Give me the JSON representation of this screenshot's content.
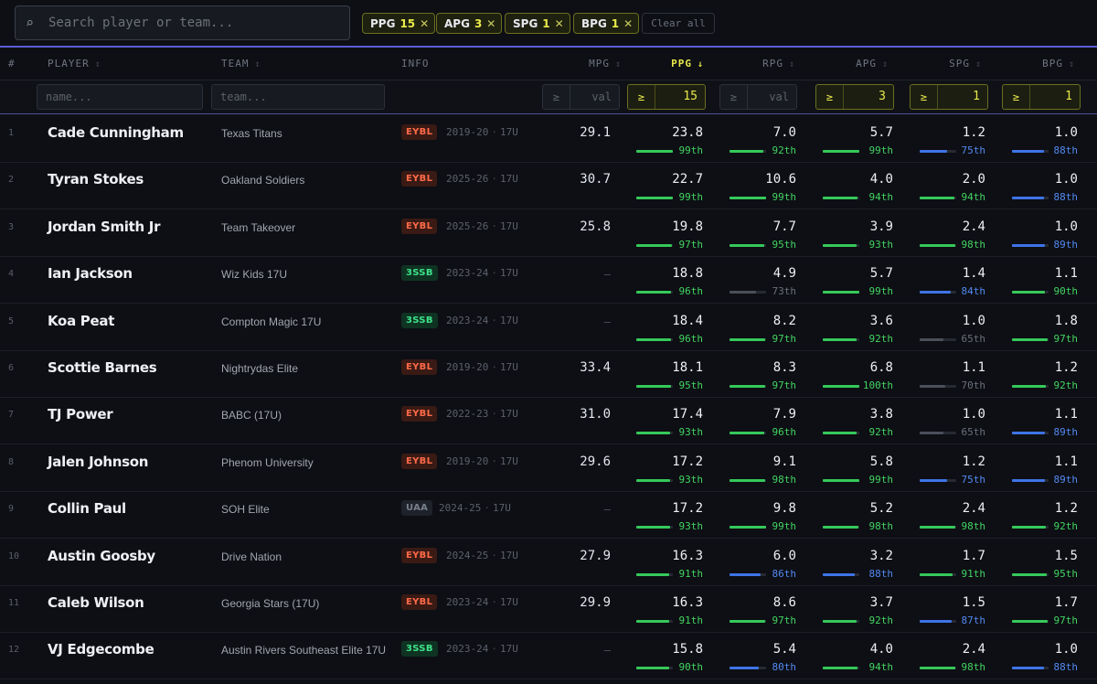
{
  "search": {
    "placeholder": "Search player or team..."
  },
  "chips": [
    {
      "stat": "PPG",
      "value": "15"
    },
    {
      "stat": "APG",
      "value": "3"
    },
    {
      "stat": "SPG",
      "value": "1"
    },
    {
      "stat": "BPG",
      "value": "1"
    }
  ],
  "clear_label": "Clear all",
  "headers": {
    "rank": "#",
    "player": "PLAYER",
    "team": "TEAM",
    "info": "INFO",
    "mpg": "MPG",
    "ppg": "PPG",
    "rpg": "RPG",
    "apg": "APG",
    "spg": "SPG",
    "bpg": "BPG",
    "sort_icon": "↕",
    "sorted_icon": "↓"
  },
  "filters": {
    "name_placeholder": "name...",
    "team_placeholder": "team...",
    "op": "≥",
    "mpg": "val",
    "ppg": "15",
    "rpg": "val",
    "apg": "3",
    "spg": "1",
    "bpg": "1"
  },
  "colors": {
    "accent": "#5c5ed8",
    "highlight": "#e8ea4a",
    "green": "#43d462",
    "blue": "#5489f2",
    "gray": "#6b707b"
  },
  "rows": [
    {
      "rank": "1",
      "name": "Cade Cunningham",
      "team": "Texas Titans",
      "league": "EYBL",
      "season": "2019-20",
      "age": "17U",
      "mpg": "29.1",
      "stats": [
        {
          "v": "23.8",
          "p": "99th",
          "c": "g",
          "f": 0.99
        },
        {
          "v": "7.0",
          "p": "92th",
          "c": "g",
          "f": 0.92
        },
        {
          "v": "5.7",
          "p": "99th",
          "c": "g",
          "f": 0.99
        },
        {
          "v": "1.2",
          "p": "75th",
          "c": "b",
          "f": 0.75
        },
        {
          "v": "1.0",
          "p": "88th",
          "c": "b",
          "f": 0.88
        }
      ]
    },
    {
      "rank": "2",
      "name": "Tyran Stokes",
      "team": "Oakland Soldiers",
      "league": "EYBL",
      "season": "2025-26",
      "age": "17U",
      "mpg": "30.7",
      "stats": [
        {
          "v": "22.7",
          "p": "99th",
          "c": "g",
          "f": 0.99
        },
        {
          "v": "10.6",
          "p": "99th",
          "c": "g",
          "f": 0.99
        },
        {
          "v": "4.0",
          "p": "94th",
          "c": "g",
          "f": 0.94
        },
        {
          "v": "2.0",
          "p": "94th",
          "c": "g",
          "f": 0.94
        },
        {
          "v": "1.0",
          "p": "88th",
          "c": "b",
          "f": 0.88
        }
      ]
    },
    {
      "rank": "3",
      "name": "Jordan Smith Jr",
      "team": "Team Takeover",
      "league": "EYBL",
      "season": "2025-26",
      "age": "17U",
      "mpg": "25.8",
      "stats": [
        {
          "v": "19.8",
          "p": "97th",
          "c": "g",
          "f": 0.97
        },
        {
          "v": "7.7",
          "p": "95th",
          "c": "g",
          "f": 0.95
        },
        {
          "v": "3.9",
          "p": "93th",
          "c": "g",
          "f": 0.93
        },
        {
          "v": "2.4",
          "p": "98th",
          "c": "g",
          "f": 0.98
        },
        {
          "v": "1.0",
          "p": "89th",
          "c": "b",
          "f": 0.89
        }
      ]
    },
    {
      "rank": "4",
      "name": "Ian Jackson",
      "team": "Wiz Kids 17U",
      "league": "3SSB",
      "season": "2023-24",
      "age": "17U",
      "mpg": "—",
      "stats": [
        {
          "v": "18.8",
          "p": "96th",
          "c": "g",
          "f": 0.96
        },
        {
          "v": "4.9",
          "p": "73th",
          "c": "y",
          "f": 0.73
        },
        {
          "v": "5.7",
          "p": "99th",
          "c": "g",
          "f": 0.99
        },
        {
          "v": "1.4",
          "p": "84th",
          "c": "b",
          "f": 0.84
        },
        {
          "v": "1.1",
          "p": "90th",
          "c": "g",
          "f": 0.9
        }
      ]
    },
    {
      "rank": "5",
      "name": "Koa Peat",
      "team": "Compton Magic 17U",
      "league": "3SSB",
      "season": "2023-24",
      "age": "17U",
      "mpg": "—",
      "stats": [
        {
          "v": "18.4",
          "p": "96th",
          "c": "g",
          "f": 0.96
        },
        {
          "v": "8.2",
          "p": "97th",
          "c": "g",
          "f": 0.97
        },
        {
          "v": "3.6",
          "p": "92th",
          "c": "g",
          "f": 0.92
        },
        {
          "v": "1.0",
          "p": "65th",
          "c": "y",
          "f": 0.65
        },
        {
          "v": "1.8",
          "p": "97th",
          "c": "g",
          "f": 0.97
        }
      ]
    },
    {
      "rank": "6",
      "name": "Scottie Barnes",
      "team": "Nightrydas Elite",
      "league": "EYBL",
      "season": "2019-20",
      "age": "17U",
      "mpg": "33.4",
      "stats": [
        {
          "v": "18.1",
          "p": "95th",
          "c": "g",
          "f": 0.95
        },
        {
          "v": "8.3",
          "p": "97th",
          "c": "g",
          "f": 0.97
        },
        {
          "v": "6.8",
          "p": "100th",
          "c": "g",
          "f": 1.0
        },
        {
          "v": "1.1",
          "p": "70th",
          "c": "y",
          "f": 0.7
        },
        {
          "v": "1.2",
          "p": "92th",
          "c": "g",
          "f": 0.92
        }
      ]
    },
    {
      "rank": "7",
      "name": "TJ Power",
      "team": "BABC (17U)",
      "league": "EYBL",
      "season": "2022-23",
      "age": "17U",
      "mpg": "31.0",
      "stats": [
        {
          "v": "17.4",
          "p": "93th",
          "c": "g",
          "f": 0.93
        },
        {
          "v": "7.9",
          "p": "96th",
          "c": "g",
          "f": 0.96
        },
        {
          "v": "3.8",
          "p": "92th",
          "c": "g",
          "f": 0.92
        },
        {
          "v": "1.0",
          "p": "65th",
          "c": "y",
          "f": 0.65
        },
        {
          "v": "1.1",
          "p": "89th",
          "c": "b",
          "f": 0.89
        }
      ]
    },
    {
      "rank": "8",
      "name": "Jalen Johnson",
      "team": "Phenom University",
      "league": "EYBL",
      "season": "2019-20",
      "age": "17U",
      "mpg": "29.6",
      "stats": [
        {
          "v": "17.2",
          "p": "93th",
          "c": "g",
          "f": 0.93
        },
        {
          "v": "9.1",
          "p": "98th",
          "c": "g",
          "f": 0.98
        },
        {
          "v": "5.8",
          "p": "99th",
          "c": "g",
          "f": 0.99
        },
        {
          "v": "1.2",
          "p": "75th",
          "c": "b",
          "f": 0.75
        },
        {
          "v": "1.1",
          "p": "89th",
          "c": "b",
          "f": 0.89
        }
      ]
    },
    {
      "rank": "9",
      "name": "Collin Paul",
      "team": "SOH Elite",
      "league": "UAA",
      "season": "2024-25",
      "age": "17U",
      "mpg": "—",
      "stats": [
        {
          "v": "17.2",
          "p": "93th",
          "c": "g",
          "f": 0.93
        },
        {
          "v": "9.8",
          "p": "99th",
          "c": "g",
          "f": 0.99
        },
        {
          "v": "5.2",
          "p": "98th",
          "c": "g",
          "f": 0.98
        },
        {
          "v": "2.4",
          "p": "98th",
          "c": "g",
          "f": 0.98
        },
        {
          "v": "1.2",
          "p": "92th",
          "c": "g",
          "f": 0.92
        }
      ]
    },
    {
      "rank": "10",
      "name": "Austin Goosby",
      "team": "Drive Nation",
      "league": "EYBL",
      "season": "2024-25",
      "age": "17U",
      "mpg": "27.9",
      "stats": [
        {
          "v": "16.3",
          "p": "91th",
          "c": "g",
          "f": 0.91
        },
        {
          "v": "6.0",
          "p": "86th",
          "c": "b",
          "f": 0.86
        },
        {
          "v": "3.2",
          "p": "88th",
          "c": "b",
          "f": 0.88
        },
        {
          "v": "1.7",
          "p": "91th",
          "c": "g",
          "f": 0.91
        },
        {
          "v": "1.5",
          "p": "95th",
          "c": "g",
          "f": 0.95
        }
      ]
    },
    {
      "rank": "11",
      "name": "Caleb Wilson",
      "team": "Georgia Stars (17U)",
      "league": "EYBL",
      "season": "2023-24",
      "age": "17U",
      "mpg": "29.9",
      "stats": [
        {
          "v": "16.3",
          "p": "91th",
          "c": "g",
          "f": 0.91
        },
        {
          "v": "8.6",
          "p": "97th",
          "c": "g",
          "f": 0.97
        },
        {
          "v": "3.7",
          "p": "92th",
          "c": "g",
          "f": 0.92
        },
        {
          "v": "1.5",
          "p": "87th",
          "c": "b",
          "f": 0.87
        },
        {
          "v": "1.7",
          "p": "97th",
          "c": "g",
          "f": 0.97
        }
      ]
    },
    {
      "rank": "12",
      "name": "VJ Edgecombe",
      "team": "Austin Rivers Southeast Elite 17U",
      "league": "3SSB",
      "season": "2023-24",
      "age": "17U",
      "mpg": "—",
      "stats": [
        {
          "v": "15.8",
          "p": "90th",
          "c": "g",
          "f": 0.9
        },
        {
          "v": "5.4",
          "p": "80th",
          "c": "b",
          "f": 0.8
        },
        {
          "v": "4.0",
          "p": "94th",
          "c": "g",
          "f": 0.94
        },
        {
          "v": "2.4",
          "p": "98th",
          "c": "g",
          "f": 0.98
        },
        {
          "v": "1.0",
          "p": "88th",
          "c": "b",
          "f": 0.88
        }
      ]
    }
  ]
}
